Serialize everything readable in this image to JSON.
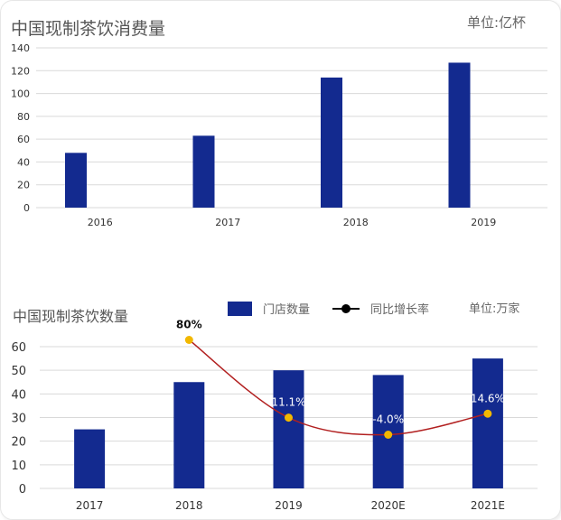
{
  "chart_data": [
    {
      "type": "bar",
      "title": "中国现制茶饮消费量",
      "unit": "单位:亿杯",
      "categories": [
        "2016",
        "2017",
        "2018",
        "2019"
      ],
      "values": [
        48,
        63,
        114,
        127
      ],
      "ylim": [
        0,
        140
      ],
      "yticks": [
        "0",
        "20",
        "40",
        "60",
        "80",
        "100",
        "120",
        "140"
      ],
      "grid": true,
      "color": "#132a8f"
    },
    {
      "type": "bar",
      "title": "中国现制茶饮数量",
      "unit": "单位:万家",
      "categories": [
        "2017",
        "2018",
        "2019",
        "2020E",
        "2021E"
      ],
      "series": [
        {
          "name": "门店数量",
          "type": "bar",
          "values": [
            25,
            45,
            50,
            48,
            55
          ],
          "color": "#132a8f"
        },
        {
          "name": "同比增长率",
          "type": "line",
          "values": [
            null,
            80,
            11.1,
            -4.0,
            14.6
          ],
          "labels": [
            "",
            "80%",
            "11.1%",
            "-4.0%",
            "14.6%"
          ],
          "line_color": "#b22020",
          "marker_color": "#f2b800"
        }
      ],
      "ylim": [
        0,
        60
      ],
      "yticks": [
        "0",
        "10",
        "20",
        "30",
        "40",
        "50",
        "60"
      ],
      "grid": true,
      "legend_position": "top"
    }
  ]
}
